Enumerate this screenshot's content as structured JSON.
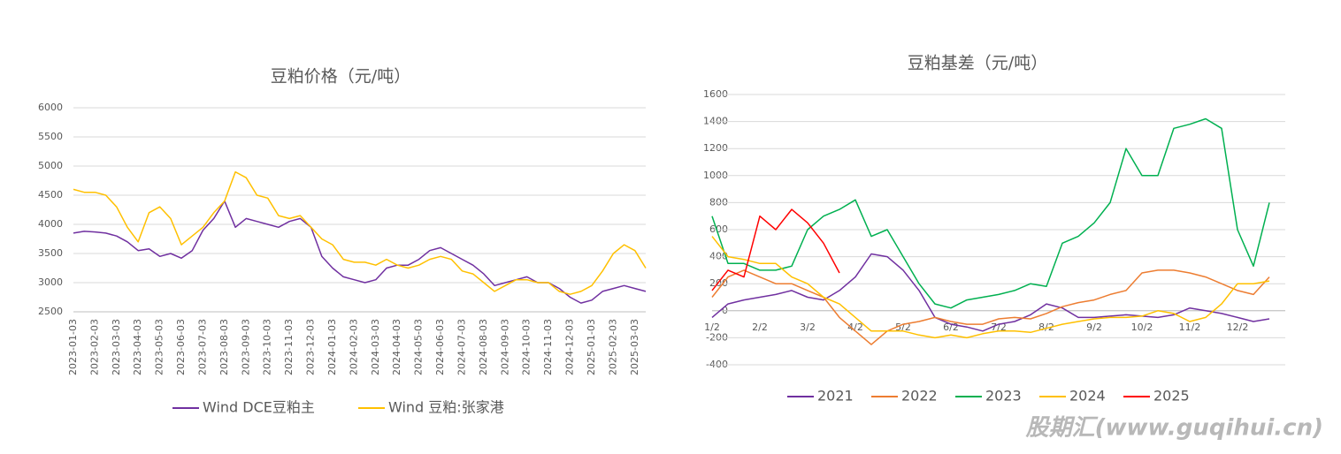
{
  "chart_data": [
    {
      "type": "line",
      "title": "豆粕价格（元/吨）",
      "categories": [
        "2023-01-03",
        null,
        "2023-02-03",
        null,
        "2023-03-03",
        null,
        "2023-04-03",
        null,
        "2023-05-03",
        null,
        "2023-06-03",
        null,
        "2023-07-03",
        null,
        "2023-08-03",
        null,
        "2023-09-03",
        null,
        "2023-10-03",
        null,
        "2023-11-03",
        null,
        "2023-12-03",
        null,
        "2024-01-03",
        null,
        "2024-02-03",
        null,
        "2024-03-03",
        null,
        "2024-04-03",
        null,
        "2024-05-03",
        null,
        "2024-06-03",
        null,
        "2024-07-03",
        null,
        "2024-08-03",
        null,
        "2024-09-03",
        null,
        "2024-10-03",
        null,
        "2024-11-03",
        null,
        "2024-12-03",
        null,
        "2025-01-03",
        null,
        "2025-02-03",
        null,
        "2025-03-03",
        null
      ],
      "series": [
        {
          "name": "Wind DCE豆粕主",
          "color": "#7030a0",
          "values": [
            3850,
            3880,
            3870,
            3850,
            3800,
            3700,
            3550,
            3580,
            3450,
            3500,
            3420,
            3550,
            3900,
            4100,
            4400,
            3950,
            4100,
            4050,
            4000,
            3950,
            4050,
            4100,
            3950,
            3450,
            3250,
            3100,
            3050,
            3000,
            3050,
            3250,
            3300,
            3300,
            3400,
            3550,
            3600,
            3500,
            3400,
            3300,
            3150,
            2950,
            3000,
            3050,
            3100,
            3000,
            3000,
            2900,
            2750,
            2650,
            2700,
            2850,
            2900,
            2950,
            2900,
            2850
          ]
        },
        {
          "name": "Wind 豆粕:张家港",
          "color": "#ffc000",
          "values": [
            4600,
            4550,
            4550,
            4500,
            4300,
            3950,
            3700,
            4200,
            4300,
            4100,
            3650,
            3800,
            3950,
            4200,
            4400,
            4900,
            4800,
            4500,
            4450,
            4150,
            4100,
            4150,
            3950,
            3750,
            3650,
            3400,
            3350,
            3350,
            3300,
            3400,
            3300,
            3250,
            3300,
            3400,
            3450,
            3400,
            3200,
            3150,
            3000,
            2850,
            2950,
            3050,
            3050,
            3000,
            3000,
            2850,
            2800,
            2850,
            2950,
            3200,
            3500,
            3650,
            3550,
            3250
          ]
        }
      ],
      "ylim": [
        2500,
        6000
      ],
      "yticks": [
        2500,
        3000,
        3500,
        4000,
        4500,
        5000,
        5500,
        6000
      ],
      "grid": true
    },
    {
      "type": "line",
      "title": "豆粕基差（元/吨）",
      "categories": [
        "1/2",
        null,
        null,
        "2/2",
        null,
        null,
        "3/2",
        null,
        null,
        "4/2",
        null,
        null,
        "5/2",
        null,
        null,
        "6/2",
        null,
        null,
        "7/2",
        null,
        null,
        "8/2",
        null,
        null,
        "9/2",
        null,
        null,
        "10/2",
        null,
        null,
        "11/2",
        null,
        null,
        "12/2",
        null,
        null
      ],
      "series": [
        {
          "name": "2021",
          "color": "#7030a0",
          "values": [
            -50,
            50,
            80,
            100,
            120,
            150,
            100,
            80,
            150,
            250,
            420,
            400,
            300,
            150,
            -50,
            -100,
            -120,
            -150,
            -100,
            -80,
            -30,
            50,
            20,
            -50,
            -50,
            -40,
            -30,
            -40,
            -50,
            -30,
            20,
            0,
            -20,
            -50,
            -80,
            -60
          ]
        },
        {
          "name": "2022",
          "color": "#ed7d31",
          "values": [
            100,
            250,
            300,
            250,
            200,
            200,
            150,
            100,
            -50,
            -150,
            -250,
            -150,
            -100,
            -80,
            -50,
            -80,
            -100,
            -100,
            -60,
            -50,
            -60,
            -20,
            30,
            60,
            80,
            120,
            150,
            280,
            300,
            300,
            280,
            250,
            200,
            150,
            120,
            250
          ]
        },
        {
          "name": "2023",
          "color": "#00b050",
          "values": [
            700,
            350,
            350,
            300,
            300,
            330,
            600,
            700,
            750,
            820,
            550,
            600,
            400,
            200,
            50,
            20,
            80,
            100,
            120,
            150,
            200,
            180,
            500,
            550,
            650,
            800,
            1200,
            1000,
            1000,
            1350,
            1380,
            1420,
            1350,
            600,
            330,
            800
          ]
        },
        {
          "name": "2024",
          "color": "#ffc000",
          "values": [
            550,
            400,
            380,
            350,
            350,
            250,
            200,
            100,
            50,
            -50,
            -150,
            -150,
            -150,
            -180,
            -200,
            -180,
            -200,
            -170,
            -150,
            -150,
            -160,
            -130,
            -100,
            -80,
            -60,
            -50,
            -50,
            -40,
            0,
            -20,
            -80,
            -50,
            50,
            200,
            200,
            220
          ]
        },
        {
          "name": "2025",
          "color": "#ff0000",
          "values": [
            150,
            300,
            250,
            700,
            600,
            750,
            650,
            500,
            280,
            null,
            null,
            null,
            null,
            null,
            null,
            null,
            null,
            null,
            null,
            null,
            null,
            null,
            null,
            null,
            null,
            null,
            null,
            null,
            null,
            null,
            null,
            null,
            null,
            null,
            null,
            null
          ]
        }
      ],
      "ylim": [
        -400,
        1600
      ],
      "yticks": [
        -400,
        -200,
        0,
        200,
        400,
        600,
        800,
        1000,
        1200,
        1400,
        1600
      ],
      "grid": true
    }
  ],
  "watermark": "股期汇(www.guqihui.cn)"
}
